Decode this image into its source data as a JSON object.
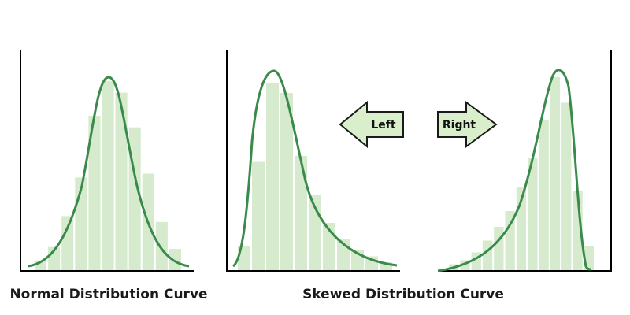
{
  "captions": {
    "normal": "Normal Distribution Curve",
    "skewed": "Skewed Distribution Curve"
  },
  "arrows": {
    "left": "Left",
    "right": "Right"
  },
  "colors": {
    "curve": "#3a8a4c",
    "bars": "#d6ebcd",
    "arrow_fill": "#d9eecb",
    "axis": "#000000"
  },
  "distributions": [
    {
      "name": "normal",
      "bar_heights": [
        0.05,
        0.12,
        0.28,
        0.48,
        0.8,
        0.98,
        0.92,
        0.74,
        0.5,
        0.25,
        0.11
      ]
    },
    {
      "name": "left-skew",
      "bar_heights": [
        0.12,
        0.55,
        0.95,
        0.9,
        0.58,
        0.38,
        0.24,
        0.16,
        0.1,
        0.07,
        0.04
      ]
    },
    {
      "name": "right-skew",
      "bar_heights": [
        0.03,
        0.05,
        0.09,
        0.15,
        0.22,
        0.3,
        0.42,
        0.57,
        0.76,
        0.98,
        0.85,
        0.4,
        0.12
      ]
    }
  ]
}
